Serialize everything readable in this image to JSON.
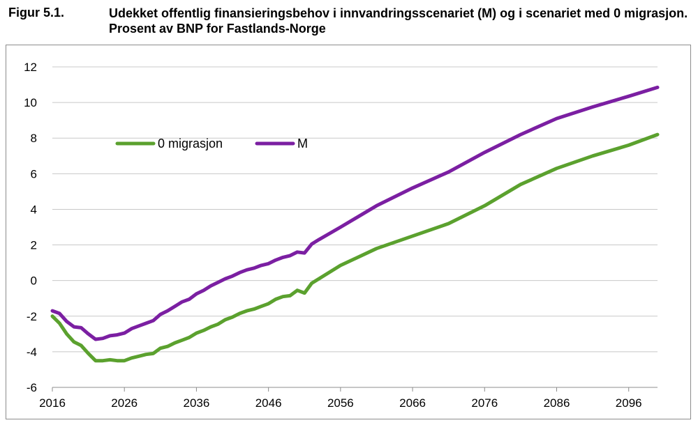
{
  "figure": {
    "number": "Figur 5.1.",
    "title": "Udekket offentlig finansieringsbehov i innvandringsscenariet (M) og i scenariet med 0 migrasjon. Prosent av BNP for Fastlands-Norge"
  },
  "chart_data": {
    "type": "line",
    "title": "Udekket offentlig finansieringsbehov i innvandringsscenariet (M) og i scenariet med 0 migrasjon. Prosent av BNP for Fastlands-Norge",
    "xlabel": "",
    "ylabel": "",
    "xlim": [
      2016,
      2100
    ],
    "ylim": [
      -6,
      12
    ],
    "yticks": [
      -6,
      -4,
      -2,
      0,
      2,
      4,
      6,
      8,
      10,
      12
    ],
    "xticks": [
      2016,
      2026,
      2036,
      2046,
      2056,
      2066,
      2076,
      2086,
      2096
    ],
    "grid": "horizontal",
    "legend_position": "upper-left inside",
    "series": [
      {
        "name": "0 migrasjon",
        "color": "#5BA12E",
        "x": [
          2016,
          2017,
          2018,
          2019,
          2020,
          2021,
          2022,
          2023,
          2024,
          2025,
          2026,
          2027,
          2028,
          2029,
          2030,
          2031,
          2032,
          2033,
          2034,
          2035,
          2036,
          2037,
          2038,
          2039,
          2040,
          2041,
          2042,
          2043,
          2044,
          2045,
          2046,
          2047,
          2048,
          2049,
          2050,
          2051,
          2052,
          2053,
          2056,
          2061,
          2066,
          2071,
          2076,
          2081,
          2086,
          2091,
          2096,
          2100
        ],
        "values": [
          -2.0,
          -2.4,
          -3.0,
          -3.45,
          -3.65,
          -4.1,
          -4.5,
          -4.5,
          -4.45,
          -4.5,
          -4.5,
          -4.35,
          -4.25,
          -4.15,
          -4.1,
          -3.8,
          -3.7,
          -3.5,
          -3.35,
          -3.2,
          -2.95,
          -2.8,
          -2.6,
          -2.45,
          -2.2,
          -2.05,
          -1.85,
          -1.7,
          -1.6,
          -1.45,
          -1.3,
          -1.05,
          -0.9,
          -0.85,
          -0.55,
          -0.7,
          -0.15,
          0.1,
          0.85,
          1.8,
          2.5,
          3.2,
          4.2,
          5.4,
          6.3,
          7.0,
          7.6,
          8.2
        ]
      },
      {
        "name": "M",
        "color": "#7B1FA2",
        "x": [
          2016,
          2017,
          2018,
          2019,
          2020,
          2021,
          2022,
          2023,
          2024,
          2025,
          2026,
          2027,
          2028,
          2029,
          2030,
          2031,
          2032,
          2033,
          2034,
          2035,
          2036,
          2037,
          2038,
          2039,
          2040,
          2041,
          2042,
          2043,
          2044,
          2045,
          2046,
          2047,
          2048,
          2049,
          2050,
          2051,
          2052,
          2053,
          2056,
          2061,
          2066,
          2071,
          2076,
          2081,
          2086,
          2091,
          2096,
          2100
        ],
        "values": [
          -1.7,
          -1.85,
          -2.3,
          -2.6,
          -2.65,
          -3.0,
          -3.3,
          -3.25,
          -3.1,
          -3.05,
          -2.95,
          -2.7,
          -2.55,
          -2.4,
          -2.25,
          -1.9,
          -1.7,
          -1.45,
          -1.2,
          -1.05,
          -0.75,
          -0.55,
          -0.3,
          -0.1,
          0.1,
          0.25,
          0.45,
          0.6,
          0.7,
          0.85,
          0.95,
          1.15,
          1.3,
          1.4,
          1.6,
          1.55,
          2.05,
          2.3,
          3.0,
          4.2,
          5.2,
          6.1,
          7.2,
          8.2,
          9.1,
          9.75,
          10.35,
          10.85
        ]
      }
    ]
  }
}
